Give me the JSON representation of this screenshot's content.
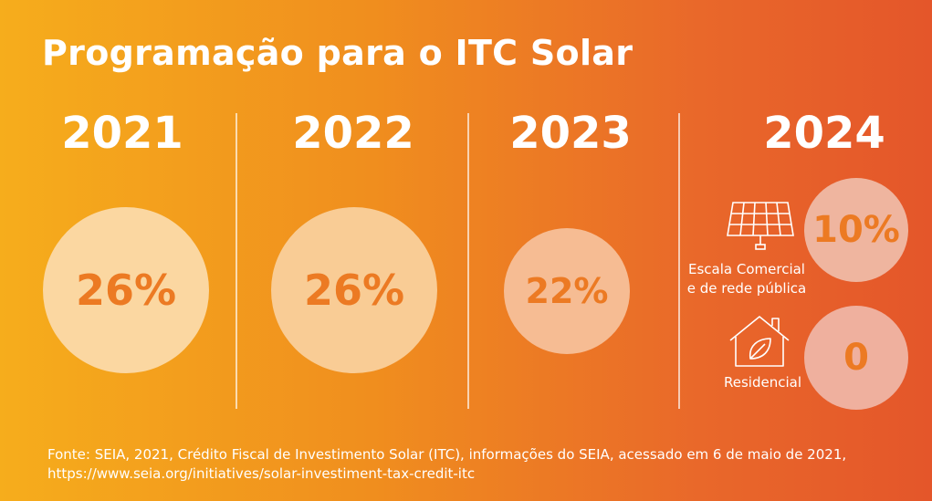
{
  "title": "Programação para o ITC Solar",
  "columns": [
    {
      "year": "2021",
      "value": "26%"
    },
    {
      "year": "2022",
      "value": "26%"
    },
    {
      "year": "2023",
      "value": "22%"
    },
    {
      "year": "2024",
      "items": [
        {
          "label_line1": "Escala Comercial",
          "label_line2": "e de rede pública",
          "value": "10%",
          "icon": "solar-panel-icon"
        },
        {
          "label": "Residencial",
          "value": "0",
          "icon": "house-leaf-icon"
        }
      ]
    }
  ],
  "source": {
    "line1": "Fonte: SEIA, 2021, Crédito Fiscal de Investimento Solar (ITC), informações do SEIA, acessado em 6 de maio de 2021,",
    "line2": "https://www.seia.org/initiatives/solar-investiment-tax-credit-itc"
  },
  "colors": {
    "background_start": "#f6ad1c",
    "background_end": "#e4562a",
    "percent_text": "#ec7a23"
  }
}
